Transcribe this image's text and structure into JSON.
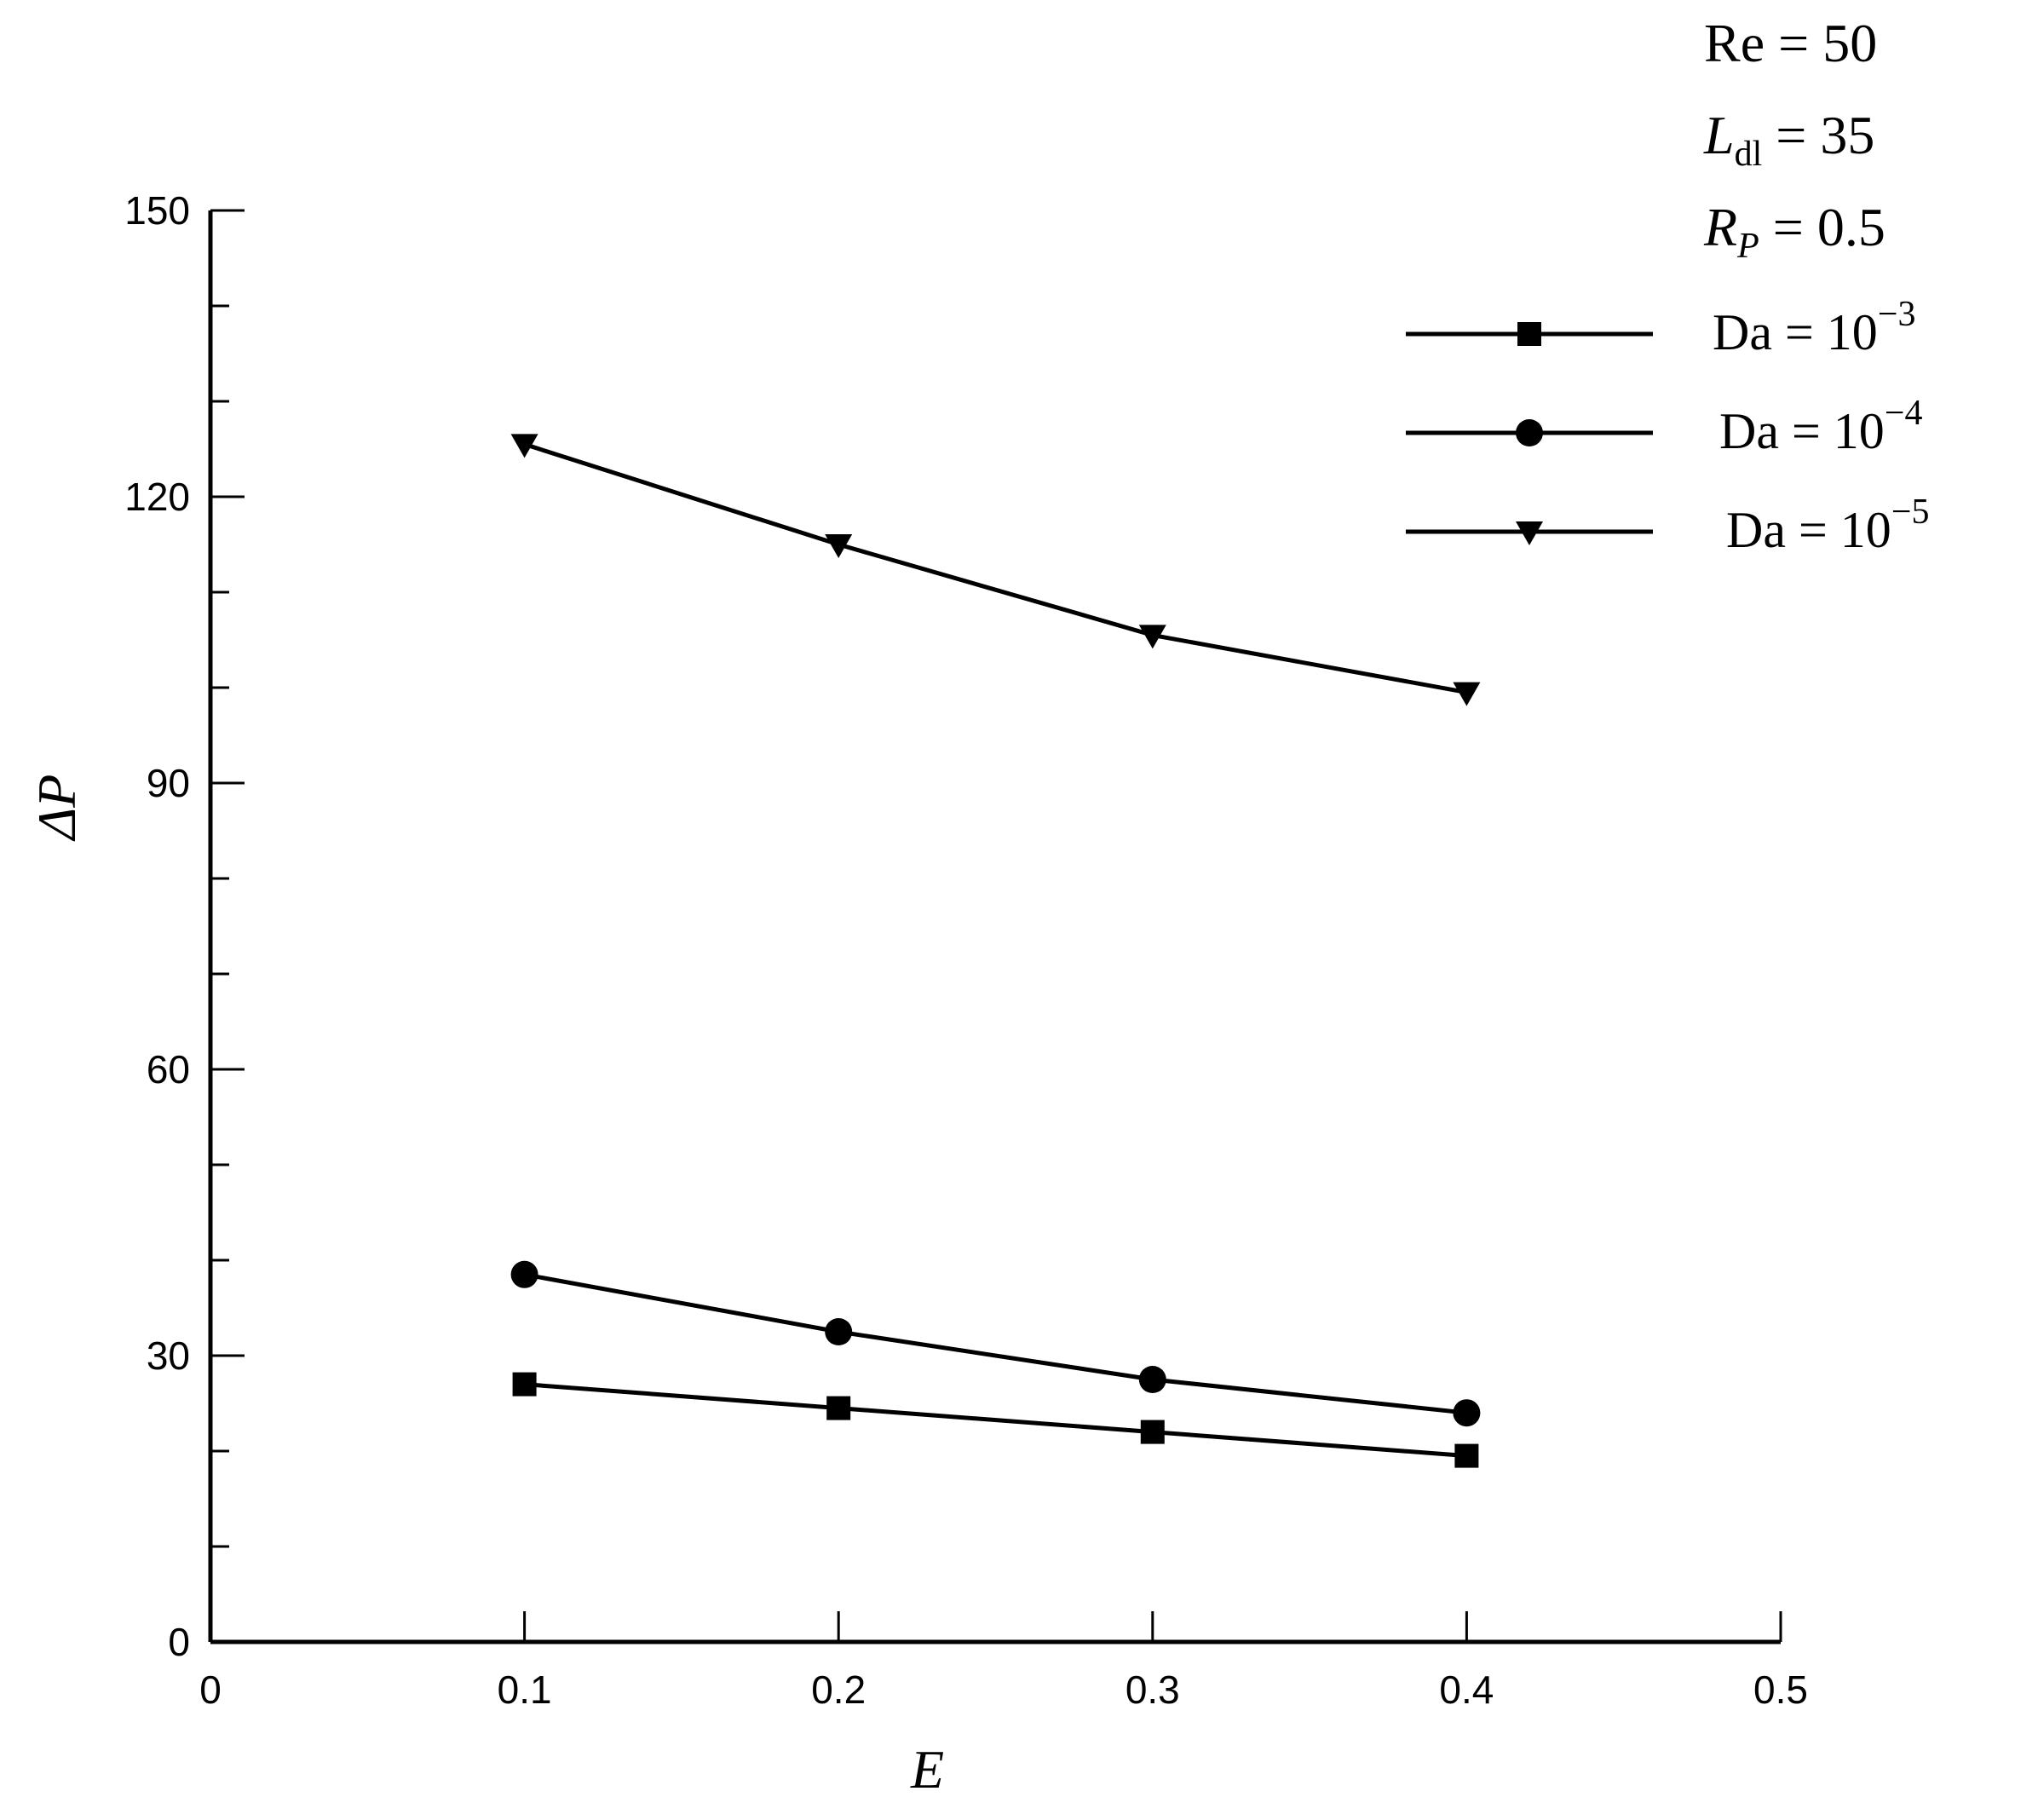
{
  "chart_data": {
    "type": "line",
    "title": "",
    "xlabel": "E",
    "ylabel": "ΔP",
    "xlim": [
      0,
      0.5
    ],
    "ylim": [
      0,
      150
    ],
    "x_ticks": [
      "0",
      "0.1",
      "0.2",
      "0.3",
      "0.4",
      "0.5"
    ],
    "x_tick_values": [
      0,
      0.1,
      0.2,
      0.3,
      0.4,
      0.5
    ],
    "y_ticks": [
      "0",
      "30",
      "60",
      "90",
      "120",
      "150"
    ],
    "y_tick_values": [
      0,
      30,
      60,
      90,
      120,
      150
    ],
    "grid": false,
    "legend_position": "top-right",
    "parameters": [
      {
        "name": "Re",
        "subscript": "",
        "italic": false,
        "value": "50"
      },
      {
        "name": "L",
        "subscript": "dl",
        "italic": true,
        "value": "35"
      },
      {
        "name": "R",
        "subscript": "P",
        "italic": true,
        "value": "0.5"
      }
    ],
    "series": [
      {
        "name": "Da = 10−3",
        "label_base": "Da = 10",
        "label_exp": "−3",
        "marker": "square",
        "x": [
          0.1,
          0.2,
          0.3,
          0.4
        ],
        "values": [
          27,
          24.5,
          22,
          19.5
        ]
      },
      {
        "name": "Da = 10−4",
        "label_base": "Da = 10",
        "label_exp": "−4",
        "marker": "circle",
        "x": [
          0.1,
          0.2,
          0.3,
          0.4
        ],
        "values": [
          38.5,
          32.5,
          27.5,
          24
        ]
      },
      {
        "name": "Da = 10−5",
        "label_base": "Da = 10",
        "label_exp": "−5",
        "marker": "triangle-down",
        "x": [
          0.1,
          0.2,
          0.3,
          0.4
        ],
        "values": [
          125.5,
          115,
          105.5,
          99.5
        ]
      }
    ]
  }
}
